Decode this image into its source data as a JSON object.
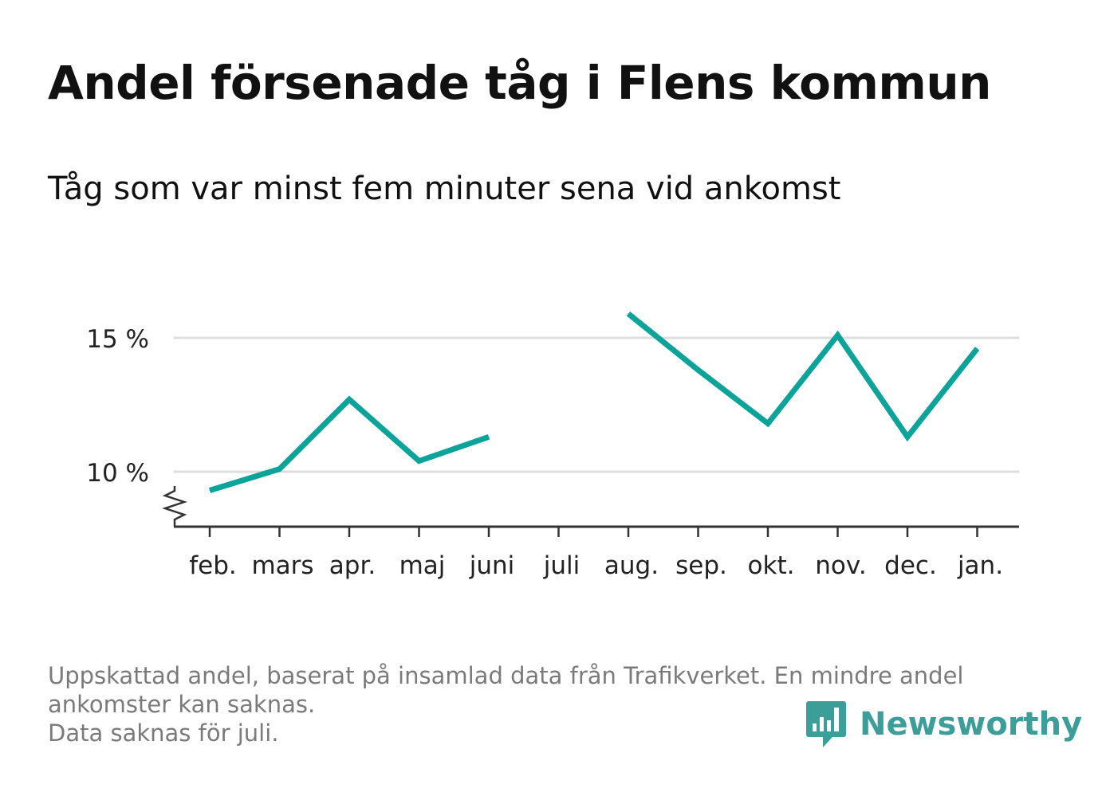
{
  "title": "Andel försenade tåg i Flens kommun",
  "subtitle": "Tåg som var minst fem minuter sena vid ankomst",
  "footnote": {
    "line1": "Uppskattad andel, baserat på insamlad data från Trafikverket. En mindre andel",
    "line2": "ankomster kan saknas.",
    "line3": "Data saknas för juli."
  },
  "brand": {
    "name": "Newsworthy",
    "color": "#3c9e98",
    "icon": "bar-chart-speech-bubble-icon"
  },
  "chart_data": {
    "type": "line",
    "categories": [
      "feb.",
      "mars",
      "apr.",
      "maj",
      "juni",
      "juli",
      "aug.",
      "sep.",
      "okt.",
      "nov.",
      "dec.",
      "jan."
    ],
    "series": [
      {
        "values": [
          9.3,
          10.1,
          12.7,
          10.4,
          11.3,
          null,
          15.9,
          13.8,
          11.8,
          15.1,
          11.3,
          14.6
        ],
        "color": "#0ba39a"
      }
    ],
    "yticks": [
      {
        "value": 10,
        "label": "10 %"
      },
      {
        "value": 15,
        "label": "15 %"
      }
    ],
    "ylim": [
      8,
      16.5
    ],
    "axis_break": true,
    "grid": "horizontal",
    "legend": "none"
  }
}
